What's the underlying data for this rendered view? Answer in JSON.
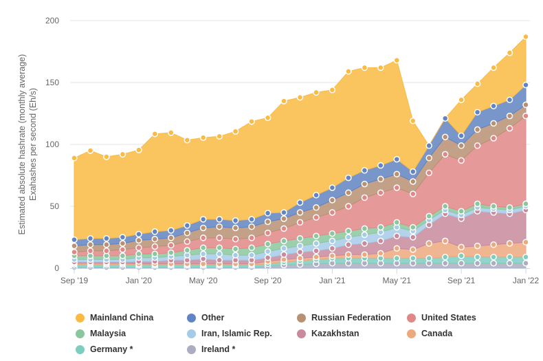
{
  "chart_data": {
    "type": "area",
    "stacked": true,
    "ylabel": "Estimated absolute hashrate (monthly average)",
    "ylabel_sub": "Exahashes per second (Eh/s)",
    "ylim": [
      0,
      200
    ],
    "yticks": [
      0,
      50,
      100,
      150,
      200
    ],
    "x": [
      "2019-09",
      "2019-10",
      "2019-11",
      "2019-12",
      "2020-01",
      "2020-02",
      "2020-03",
      "2020-04",
      "2020-05",
      "2020-06",
      "2020-07",
      "2020-08",
      "2020-09",
      "2020-10",
      "2020-11",
      "2020-12",
      "2021-01",
      "2021-02",
      "2021-03",
      "2021-04",
      "2021-05",
      "2021-06",
      "2021-07",
      "2021-08",
      "2021-09",
      "2021-10",
      "2021-11",
      "2021-12",
      "2022-01"
    ],
    "xticks": [
      {
        "label": "Sep '19",
        "index": 0
      },
      {
        "label": "Jan '20",
        "index": 4
      },
      {
        "label": "May '20",
        "index": 8
      },
      {
        "label": "Sep '20",
        "index": 12
      },
      {
        "label": "Jan '21",
        "index": 16
      },
      {
        "label": "May '21",
        "index": 20
      },
      {
        "label": "Sep '21",
        "index": 24
      },
      {
        "label": "Jan '22",
        "index": 28
      }
    ],
    "grid": true,
    "legend_position": "bottom",
    "series": [
      {
        "name": "Ireland *",
        "color": "#adadc1",
        "values": [
          0.5,
          0.5,
          0.5,
          0.5,
          0.5,
          0.5,
          0.5,
          0.5,
          0.5,
          0.5,
          0.5,
          0.5,
          1.5,
          2.5,
          3,
          3.5,
          4,
          4,
          4,
          4,
          4,
          4,
          4,
          4,
          4,
          4,
          4,
          4,
          4
        ]
      },
      {
        "name": "Germany *",
        "color": "#7fcdbf",
        "values": [
          2.5,
          2.5,
          2.5,
          2.5,
          2,
          2,
          2,
          2,
          2,
          2,
          2,
          2,
          2,
          2.5,
          3,
          3.5,
          4,
          4,
          4,
          4,
          4,
          4,
          4,
          5,
          6,
          5,
          5,
          5,
          5
        ]
      },
      {
        "name": "Canada",
        "color": "#eda97e",
        "values": [
          1,
          1,
          1,
          1,
          1,
          1,
          1,
          1,
          1,
          1,
          1,
          1,
          2,
          2,
          2,
          2,
          2,
          3,
          3,
          4,
          8,
          7,
          12,
          13,
          7,
          9,
          10,
          11,
          12
        ]
      },
      {
        "name": "Kazakhstan",
        "color": "#c88a9c",
        "values": [
          1,
          1,
          1,
          1,
          2,
          2,
          3,
          3,
          4,
          3,
          3,
          3,
          3,
          4,
          5,
          5,
          6,
          8,
          9,
          10,
          10,
          10,
          15,
          22,
          23,
          28,
          26,
          24,
          26
        ]
      },
      {
        "name": "Iran, Islamic Rep.",
        "color": "#a5cbe8",
        "values": [
          2,
          2,
          2,
          2,
          3,
          3,
          3,
          4,
          4,
          5,
          4,
          4,
          5,
          5,
          5,
          6,
          6,
          6,
          7,
          7,
          7,
          5,
          4,
          3,
          3,
          3,
          3,
          3,
          3
        ]
      },
      {
        "name": "Malaysia",
        "color": "#8bc79e",
        "values": [
          3,
          3,
          3,
          3,
          3,
          3,
          3,
          4,
          5,
          5,
          5,
          6,
          6,
          6,
          6,
          6,
          6,
          5,
          5,
          4,
          4,
          3,
          3,
          3,
          3,
          3,
          2,
          2,
          2
        ]
      },
      {
        "name": "United States",
        "color": "#e08887",
        "values": [
          3,
          4,
          4,
          5,
          5,
          6,
          6,
          7,
          8,
          8,
          8,
          8,
          9,
          10,
          13,
          15,
          17,
          20,
          25,
          28,
          28,
          27,
          35,
          42,
          41,
          47,
          55,
          64,
          71
        ]
      },
      {
        "name": "Russian Federation",
        "color": "#b89173",
        "values": [
          5,
          5,
          5,
          5,
          6,
          6,
          6,
          7,
          8,
          9,
          9,
          9,
          9,
          8,
          8,
          8,
          10,
          11,
          11,
          11,
          11,
          10,
          12,
          14,
          12,
          13,
          12,
          10,
          9
        ]
      },
      {
        "name": "Other",
        "color": "#6184c2",
        "values": [
          5,
          5,
          5,
          5,
          5,
          6,
          6,
          6,
          7,
          6,
          6,
          6,
          7,
          5,
          8,
          10,
          10,
          12,
          11,
          11,
          12,
          8,
          10,
          15,
          8,
          14,
          14,
          13,
          16
        ]
      },
      {
        "name": "Mainland China",
        "color": "#f9bb43",
        "values": [
          66,
          71,
          66,
          67,
          68,
          79,
          79,
          69,
          66,
          67,
          72,
          79,
          77,
          90,
          85,
          83,
          79,
          86,
          83,
          79,
          80,
          41,
          0,
          0,
          29,
          23,
          31,
          38,
          39
        ]
      }
    ],
    "legend_order": [
      "Mainland China",
      "Other",
      "Russian Federation",
      "United States",
      "Malaysia",
      "Iran, Islamic Rep.",
      "Kazakhstan",
      "Canada",
      "Germany *",
      "Ireland *"
    ]
  }
}
